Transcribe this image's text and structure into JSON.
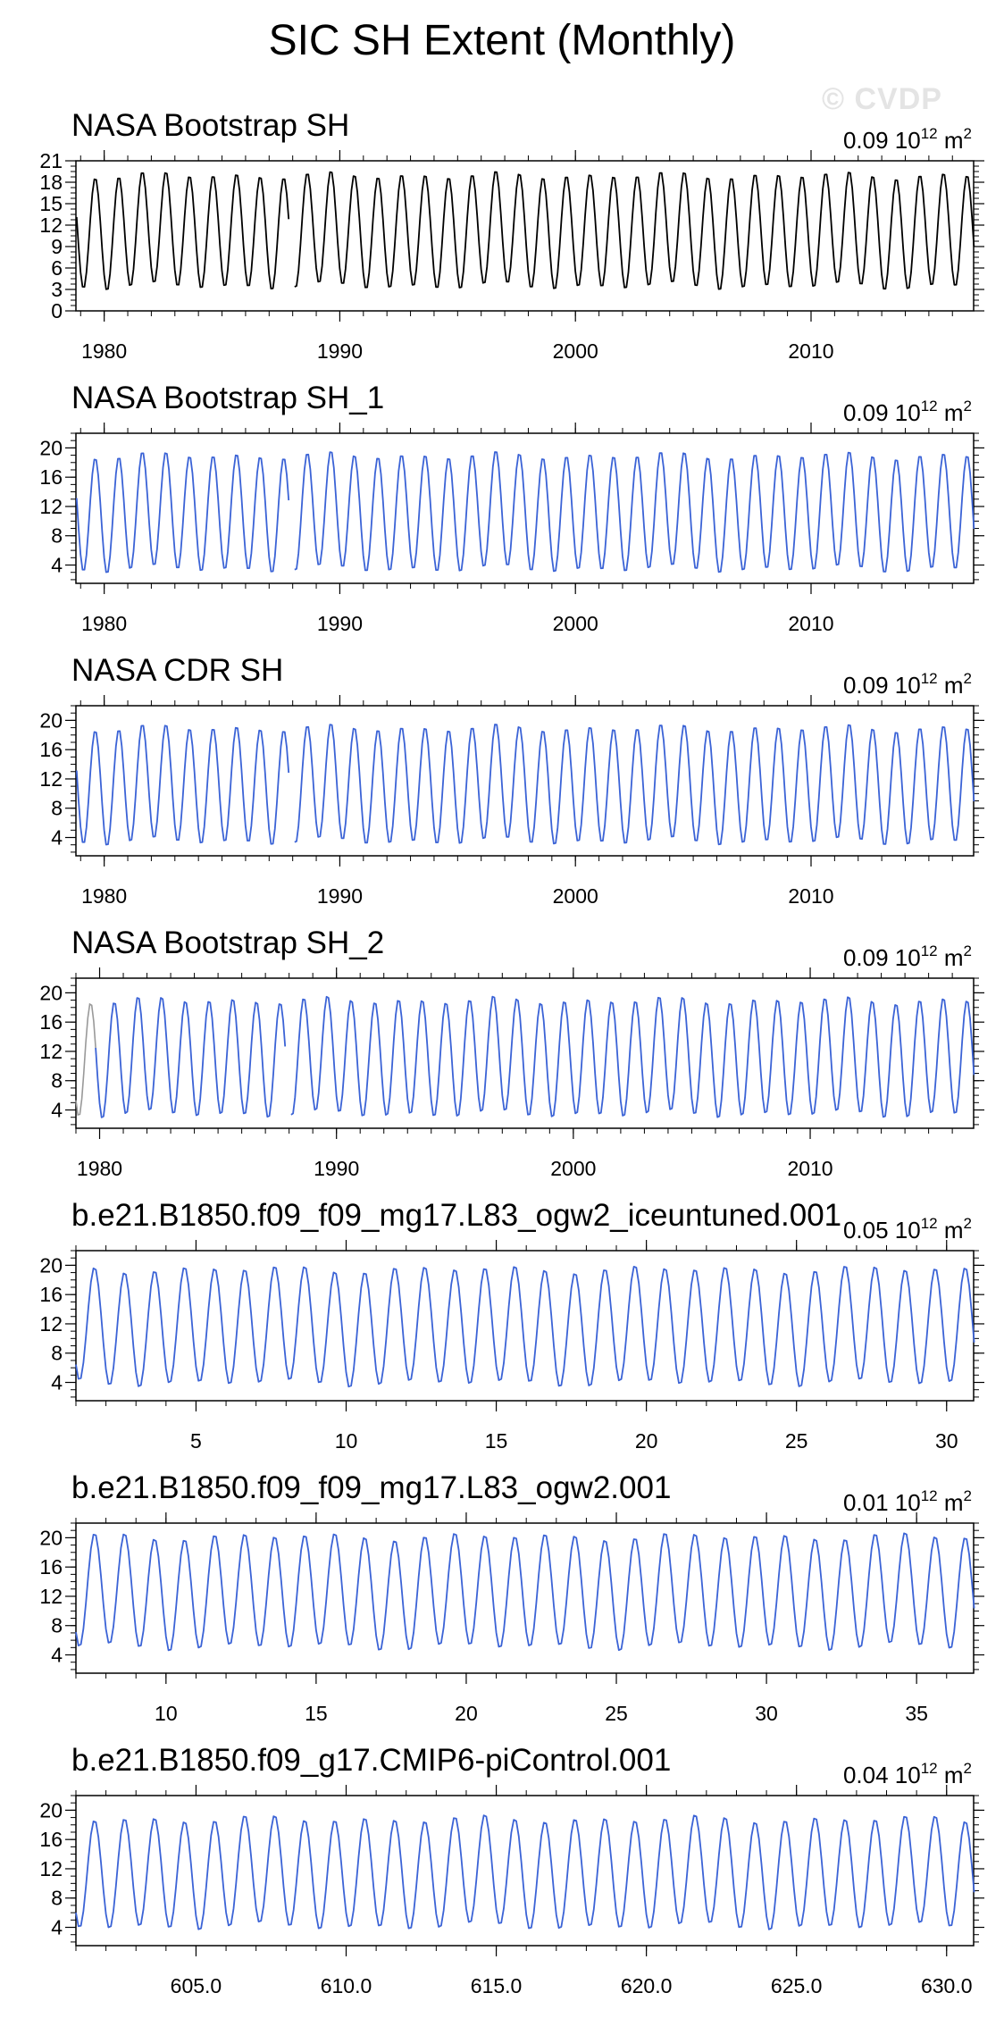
{
  "page_title": "SIC SH Extent (Monthly)",
  "watermark": "© CVDP",
  "colors": {
    "obs": "#000000",
    "model": "#3b63d6",
    "missing": "#999999",
    "axis": "#000000"
  },
  "chart_data": [
    {
      "type": "line",
      "title": "NASA Bootstrap SH",
      "stat_value": "0.09",
      "stat_unit_base": "10",
      "stat_unit_exp": "12",
      "stat_unit_tail": "m",
      "stat_unit_tail_exp": "2",
      "color": "obs",
      "xlim": [
        1978.8,
        2016.9
      ],
      "ylim": [
        0,
        21
      ],
      "yticks": [
        0,
        3,
        6,
        9,
        12,
        15,
        18,
        21
      ],
      "xticks": [
        1980,
        1990,
        2000,
        2010
      ],
      "xtick_labels": [
        "1980",
        "1990",
        "2000",
        "2010"
      ],
      "series": {
        "start": 1978.83,
        "end": 2016.9,
        "min": 3.3,
        "max": 19.1,
        "gap": [
          1987.9,
          1988.0
        ]
      }
    },
    {
      "type": "line",
      "title": "NASA Bootstrap SH_1",
      "stat_value": "0.09",
      "stat_unit_base": "10",
      "stat_unit_exp": "12",
      "stat_unit_tail": "m",
      "stat_unit_tail_exp": "2",
      "color": "model",
      "xlim": [
        1978.8,
        2016.9
      ],
      "ylim": [
        1.5,
        22
      ],
      "yticks": [
        4,
        8,
        12,
        16,
        20
      ],
      "xticks": [
        1980,
        1990,
        2000,
        2010
      ],
      "xtick_labels": [
        "1980",
        "1990",
        "2000",
        "2010"
      ],
      "series": {
        "start": 1978.83,
        "end": 2016.9,
        "min": 3.3,
        "max": 19.1,
        "gap": [
          1987.9,
          1988.0
        ]
      }
    },
    {
      "type": "line",
      "title": "NASA CDR SH",
      "stat_value": "0.09",
      "stat_unit_base": "10",
      "stat_unit_exp": "12",
      "stat_unit_tail": "m",
      "stat_unit_tail_exp": "2",
      "color": "model",
      "xlim": [
        1978.8,
        2016.9
      ],
      "ylim": [
        1.5,
        22
      ],
      "yticks": [
        4,
        8,
        12,
        16,
        20
      ],
      "xticks": [
        1980,
        1990,
        2000,
        2010
      ],
      "xtick_labels": [
        "1980",
        "1990",
        "2000",
        "2010"
      ],
      "series": {
        "start": 1978.83,
        "end": 2016.9,
        "min": 3.3,
        "max": 19.1,
        "gap": [
          1987.9,
          1988.0
        ]
      }
    },
    {
      "type": "line",
      "title": "NASA Bootstrap SH_2",
      "stat_value": "0.09",
      "stat_unit_base": "10",
      "stat_unit_exp": "12",
      "stat_unit_tail": "m",
      "stat_unit_tail_exp": "2",
      "color": "model",
      "xlim": [
        1979.0,
        2016.9
      ],
      "ylim": [
        1.5,
        22
      ],
      "yticks": [
        4,
        8,
        12,
        16,
        20
      ],
      "xticks": [
        1980,
        1990,
        2000,
        2010
      ],
      "xtick_labels": [
        "1980",
        "1990",
        "2000",
        "2010"
      ],
      "series": {
        "start": 1979.0,
        "end": 2016.9,
        "min": 3.3,
        "max": 19.1,
        "gap": [
          1987.9,
          1988.0
        ],
        "gray_until": 1979.85
      }
    },
    {
      "type": "line",
      "title": "b.e21.B1850.f09_f09_mg17.L83_ogw2_iceuntuned.001",
      "stat_value": "0.05",
      "stat_unit_base": "10",
      "stat_unit_exp": "12",
      "stat_unit_tail": "m",
      "stat_unit_tail_exp": "2",
      "color": "model",
      "xlim": [
        1,
        30.9
      ],
      "ylim": [
        1.5,
        22
      ],
      "yticks": [
        4,
        8,
        12,
        16,
        20
      ],
      "xticks": [
        5,
        10,
        15,
        20,
        25,
        30
      ],
      "xtick_labels": [
        "5",
        "10",
        "15",
        "20",
        "25",
        "30"
      ],
      "series": {
        "start": 1.0,
        "end": 30.9,
        "min": 3.8,
        "max": 19.6
      }
    },
    {
      "type": "line",
      "title": "b.e21.B1850.f09_f09_mg17.L83_ogw2.001",
      "stat_value": "0.01",
      "stat_unit_base": "10",
      "stat_unit_exp": "12",
      "stat_unit_tail": "m",
      "stat_unit_tail_exp": "2",
      "color": "model",
      "xlim": [
        7,
        36.9
      ],
      "ylim": [
        1.5,
        22
      ],
      "yticks": [
        4,
        8,
        12,
        16,
        20
      ],
      "xticks": [
        10,
        15,
        20,
        25,
        30,
        35
      ],
      "xtick_labels": [
        "10",
        "15",
        "20",
        "25",
        "30",
        "35"
      ],
      "series": {
        "start": 7.0,
        "end": 36.9,
        "min": 5.0,
        "max": 20.3
      }
    },
    {
      "type": "line",
      "title": "b.e21.B1850.f09_g17.CMIP6-piControl.001",
      "stat_value": "0.04",
      "stat_unit_base": "10",
      "stat_unit_exp": "12",
      "stat_unit_tail": "m",
      "stat_unit_tail_exp": "2",
      "color": "model",
      "xlim": [
        601,
        630.9
      ],
      "ylim": [
        1.5,
        22
      ],
      "yticks": [
        4,
        8,
        12,
        16,
        20
      ],
      "xticks": [
        605,
        610,
        615,
        620,
        625,
        630
      ],
      "xtick_labels": [
        "605.0",
        "610.0",
        "615.0",
        "620.0",
        "625.0",
        "630.0"
      ],
      "series": {
        "start": 601.0,
        "end": 630.9,
        "min": 4.0,
        "max": 18.9
      }
    }
  ]
}
